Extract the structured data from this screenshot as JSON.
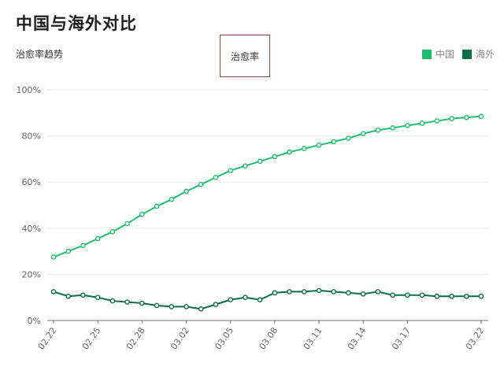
{
  "header": {
    "title": "中国与海外对比",
    "subtitle": "治愈率趋势",
    "metric_tab": "治愈率"
  },
  "legend": {
    "items": [
      {
        "label": "中国",
        "color": "#1fc06d"
      },
      {
        "label": "海外",
        "color": "#0c6e45"
      }
    ]
  },
  "chart_data": {
    "type": "line",
    "title": "中国与海外对比",
    "subtitle": "治愈率趋势",
    "ylim": [
      0,
      100
    ],
    "y_unit": "%",
    "y_ticks": [
      0,
      20,
      40,
      60,
      80,
      100
    ],
    "y_tick_labels": [
      "0%",
      "20%",
      "40%",
      "60%",
      "80%",
      "100%"
    ],
    "x": [
      "02.22",
      "02.23",
      "02.24",
      "02.25",
      "02.26",
      "02.27",
      "02.28",
      "02.29",
      "03.01",
      "03.02",
      "03.03",
      "03.04",
      "03.05",
      "03.06",
      "03.07",
      "03.08",
      "03.09",
      "03.10",
      "03.11",
      "03.12",
      "03.13",
      "03.14",
      "03.15",
      "03.16",
      "03.17",
      "03.18",
      "03.19",
      "03.20",
      "03.21",
      "03.22"
    ],
    "x_tick_labels": [
      {
        "index": 0,
        "label": "02.22"
      },
      {
        "index": 3,
        "label": "02.25"
      },
      {
        "index": 6,
        "label": "02.28"
      },
      {
        "index": 9,
        "label": "03.02"
      },
      {
        "index": 12,
        "label": "03.05"
      },
      {
        "index": 15,
        "label": "03.08"
      },
      {
        "index": 18,
        "label": "03.11"
      },
      {
        "index": 21,
        "label": "03.14"
      },
      {
        "index": 24,
        "label": "03.17"
      },
      {
        "index": 29,
        "label": "03.22"
      }
    ],
    "grid": true,
    "legend_position": "top-right",
    "series": [
      {
        "name": "中国",
        "color": "#1fc06d",
        "values": [
          27.5,
          30.0,
          32.5,
          35.5,
          38.5,
          42.0,
          46.0,
          49.5,
          52.5,
          56.0,
          59.0,
          62.0,
          65.0,
          67.0,
          69.0,
          71.0,
          73.0,
          74.5,
          76.0,
          77.5,
          79.0,
          81.0,
          82.5,
          83.5,
          84.5,
          85.5,
          86.5,
          87.5,
          88.0,
          88.5
        ]
      },
      {
        "name": "海外",
        "color": "#0c6e45",
        "values": [
          12.5,
          10.5,
          11.0,
          10.0,
          8.5,
          8.0,
          7.5,
          6.5,
          6.0,
          6.0,
          5.0,
          7.0,
          9.0,
          10.0,
          9.0,
          12.0,
          12.5,
          12.5,
          13.0,
          12.5,
          12.0,
          11.5,
          12.5,
          11.0,
          11.0,
          11.0,
          10.5,
          10.5,
          10.5,
          10.5
        ]
      }
    ]
  }
}
